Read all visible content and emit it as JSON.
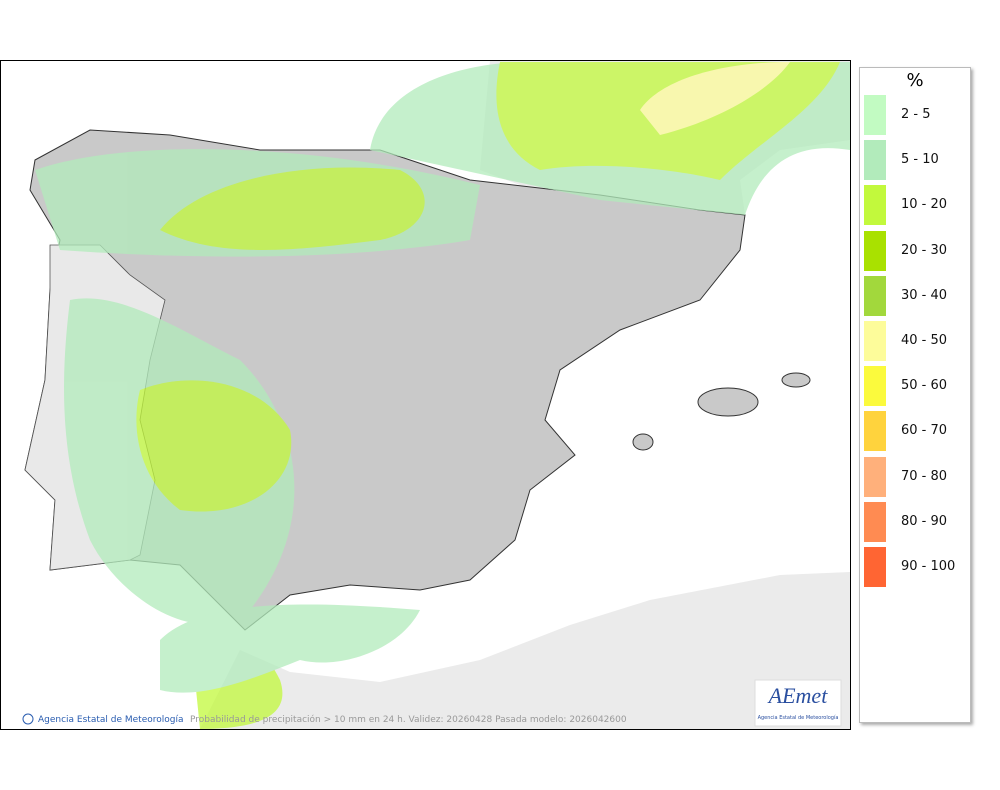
{
  "legend": {
    "title": "%",
    "items": [
      {
        "label": "2 - 5",
        "color": "#c2fbc2"
      },
      {
        "label": "5 - 10",
        "color": "#b2ebbb"
      },
      {
        "label": "10 - 20",
        "color": "#c2f93c"
      },
      {
        "label": "20 - 30",
        "color": "#a9e100"
      },
      {
        "label": "30 - 40",
        "color": "#a2d83c"
      },
      {
        "label": "40 - 50",
        "color": "#fdfc9a"
      },
      {
        "label": "50 - 60",
        "color": "#fbfa3d"
      },
      {
        "label": "60 - 70",
        "color": "#ffd33d"
      },
      {
        "label": "70 - 80",
        "color": "#ffb07b"
      },
      {
        "label": "80 - 90",
        "color": "#ff8b52"
      },
      {
        "label": "90 - 100",
        "color": "#ff6533"
      }
    ]
  },
  "footer": {
    "credit": "Agencia Estatal de Meteorología",
    "caption": "Probabilidad de precipitación > 10 mm en 24 h. Validez: 20260428 Pasada modelo: 2026042600"
  },
  "logo": {
    "name": "AEmet",
    "subtitle": "Agencia Estatal de Meteorología"
  }
}
